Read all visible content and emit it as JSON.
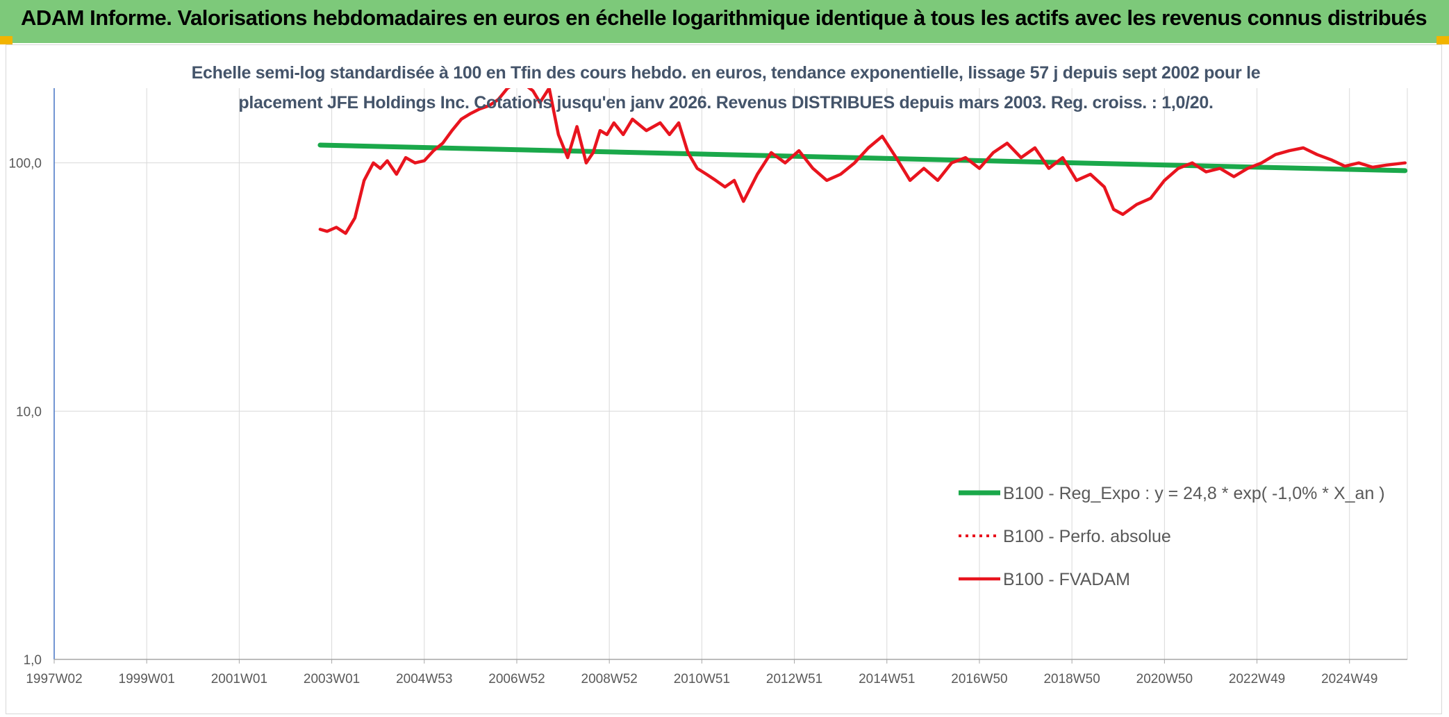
{
  "header": {
    "title": "ADAM Informe. Valorisations hebdomadaires en euros en échelle logarithmique identique à tous les actifs avec les revenus connus distribués"
  },
  "colors": {
    "banner": "#7dc97a",
    "trend": "#1aa84a",
    "fvadam": "#e8141e",
    "grid": "#d9d9d9"
  },
  "chart_data": {
    "type": "line",
    "subtitle_lines": [
      "Echelle semi-log standardisée à 100 en Tfin des cours hebdo. en euros, tendance exponentielle, lissage 57 j depuis sept 2002 pour le",
      "placement JFE Holdings Inc. Cotations jusqu'en janv 2026. Revenus DISTRIBUES depuis mars 2003. Reg. croiss. : 1,0/20."
    ],
    "y_scale": "log",
    "ylim": [
      1,
      200
    ],
    "y_ticks": [
      {
        "value": 1,
        "label": "1,0"
      },
      {
        "value": 10,
        "label": "10,0"
      },
      {
        "value": 100,
        "label": "100,0"
      }
    ],
    "xlim": [
      1997.0,
      2026.25
    ],
    "x_ticks": [
      {
        "value": 1997.0,
        "label": "1997W02"
      },
      {
        "value": 1999.0,
        "label": "1999W01"
      },
      {
        "value": 2001.0,
        "label": "2001W01"
      },
      {
        "value": 2003.0,
        "label": "2003W01"
      },
      {
        "value": 2005.0,
        "label": "2004W53"
      },
      {
        "value": 2007.0,
        "label": "2006W52"
      },
      {
        "value": 2009.0,
        "label": "2008W52"
      },
      {
        "value": 2011.0,
        "label": "2010W51"
      },
      {
        "value": 2013.0,
        "label": "2012W51"
      },
      {
        "value": 2015.0,
        "label": "2014W51"
      },
      {
        "value": 2017.0,
        "label": "2016W50"
      },
      {
        "value": 2019.0,
        "label": "2018W50"
      },
      {
        "value": 2021.0,
        "label": "2020W50"
      },
      {
        "value": 2023.0,
        "label": "2022W49"
      },
      {
        "value": 2025.0,
        "label": "2024W49"
      }
    ],
    "grid": true,
    "legend_position": "lower-right",
    "series": [
      {
        "name": "B100 - Reg_Expo : y = 24,8 * exp( -1,0% *  X_an )",
        "style": "solid-thick",
        "x": [
          2002.75,
          2026.2
        ],
        "y": [
          118,
          93
        ]
      },
      {
        "name": "B100 - Perfo. absolue",
        "style": "dotted",
        "x": [],
        "y": []
      },
      {
        "name": "B100 - FVADAM",
        "style": "solid",
        "x": [
          2002.75,
          2002.9,
          2003.1,
          2003.3,
          2003.5,
          2003.7,
          2003.9,
          2004.05,
          2004.2,
          2004.4,
          2004.6,
          2004.8,
          2005.0,
          2005.2,
          2005.4,
          2005.6,
          2005.8,
          2006.0,
          2006.2,
          2006.4,
          2006.6,
          2006.8,
          2007.0,
          2007.2,
          2007.35,
          2007.5,
          2007.7,
          2007.9,
          2008.1,
          2008.3,
          2008.5,
          2008.65,
          2008.8,
          2008.95,
          2009.1,
          2009.3,
          2009.5,
          2009.8,
          2010.1,
          2010.3,
          2010.5,
          2010.7,
          2010.9,
          2011.1,
          2011.3,
          2011.5,
          2011.7,
          2011.9,
          2012.2,
          2012.5,
          2012.8,
          2013.1,
          2013.4,
          2013.7,
          2014.0,
          2014.3,
          2014.6,
          2014.9,
          2015.2,
          2015.5,
          2015.8,
          2016.1,
          2016.4,
          2016.7,
          2017.0,
          2017.3,
          2017.6,
          2017.9,
          2018.2,
          2018.5,
          2018.8,
          2019.1,
          2019.4,
          2019.7,
          2019.9,
          2020.1,
          2020.4,
          2020.7,
          2021.0,
          2021.3,
          2021.6,
          2021.9,
          2022.2,
          2022.5,
          2022.8,
          2023.1,
          2023.4,
          2023.7,
          2024.0,
          2024.3,
          2024.6,
          2024.9,
          2025.2,
          2025.5,
          2025.8,
          2026.2
        ],
        "y": [
          54,
          53,
          55,
          52,
          60,
          85,
          100,
          95,
          102,
          90,
          105,
          100,
          102,
          112,
          120,
          135,
          150,
          158,
          165,
          170,
          180,
          200,
          210,
          205,
          195,
          175,
          200,
          130,
          105,
          140,
          100,
          110,
          135,
          130,
          145,
          130,
          150,
          135,
          145,
          130,
          145,
          110,
          95,
          90,
          85,
          80,
          85,
          70,
          90,
          110,
          100,
          112,
          95,
          85,
          90,
          100,
          115,
          128,
          105,
          85,
          95,
          85,
          100,
          105,
          95,
          110,
          120,
          105,
          115,
          95,
          105,
          85,
          90,
          80,
          65,
          62,
          68,
          72,
          85,
          95,
          100,
          92,
          95,
          88,
          95,
          100,
          108,
          112,
          115,
          108,
          103,
          97,
          100,
          96,
          98,
          100
        ]
      }
    ]
  }
}
